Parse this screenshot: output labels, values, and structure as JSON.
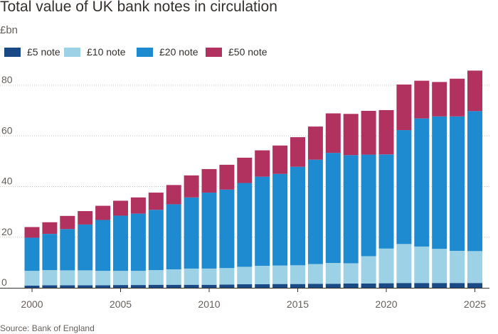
{
  "header": {
    "title": "Total value of UK bank notes in circulation",
    "unit": "£bn"
  },
  "footer": {
    "source": "Source: Bank of England"
  },
  "chart_data": {
    "type": "bar",
    "stacked": true,
    "title": "Total value of UK bank notes in circulation",
    "ylabel": "£bn",
    "ylim": [
      0,
      85
    ],
    "yticks": [
      0,
      20,
      40,
      60,
      80
    ],
    "xticks": [
      "2000",
      "2005",
      "2010",
      "2015",
      "2020",
      "2025"
    ],
    "grid": "horizontal",
    "categories": [
      "2000",
      "2001",
      "2002",
      "2003",
      "2004",
      "2005",
      "2006",
      "2007",
      "2008",
      "2009",
      "2010",
      "2011",
      "2012",
      "2013",
      "2014",
      "2015",
      "2016",
      "2017",
      "2018",
      "2019",
      "2020",
      "2021",
      "2022",
      "2023",
      "2024",
      "2025"
    ],
    "series": [
      {
        "name": "£5 note",
        "color": "#1a4a86",
        "values": [
          0.9,
          1.0,
          1.0,
          1.0,
          1.0,
          1.1,
          1.1,
          1.2,
          1.2,
          1.2,
          1.2,
          1.3,
          1.4,
          1.4,
          1.5,
          1.5,
          1.6,
          1.6,
          1.7,
          1.7,
          1.8,
          1.9,
          1.9,
          1.9,
          1.9,
          1.9
        ]
      },
      {
        "name": "£10 note",
        "color": "#9dd2e6",
        "values": [
          5.8,
          6.0,
          5.9,
          5.9,
          5.7,
          5.6,
          5.6,
          5.8,
          6.1,
          6.4,
          6.4,
          6.5,
          6.9,
          7.3,
          7.3,
          7.4,
          7.8,
          8.2,
          8.0,
          10.8,
          13.7,
          15.4,
          14.4,
          13.5,
          12.7,
          12.6
        ]
      },
      {
        "name": "£20 note",
        "color": "#1e8bd0",
        "values": [
          13.1,
          14.3,
          16.3,
          18.1,
          20.1,
          21.8,
          22.6,
          23.8,
          25.7,
          28.1,
          30.0,
          31.0,
          33.1,
          35.2,
          36.2,
          38.9,
          41.2,
          43.5,
          42.7,
          40.1,
          37.2,
          45.0,
          50.6,
          52.3,
          53.1,
          55.3
        ]
      },
      {
        "name": "£50 note",
        "color": "#b2325f",
        "values": [
          4.2,
          4.6,
          5.2,
          5.3,
          5.6,
          5.9,
          6.4,
          6.8,
          7.6,
          8.7,
          9.3,
          9.8,
          10.0,
          10.4,
          11.2,
          11.7,
          13.1,
          15.6,
          16.3,
          17.3,
          17.5,
          18.0,
          14.9,
          13.6,
          14.9,
          16.0
        ]
      }
    ]
  }
}
